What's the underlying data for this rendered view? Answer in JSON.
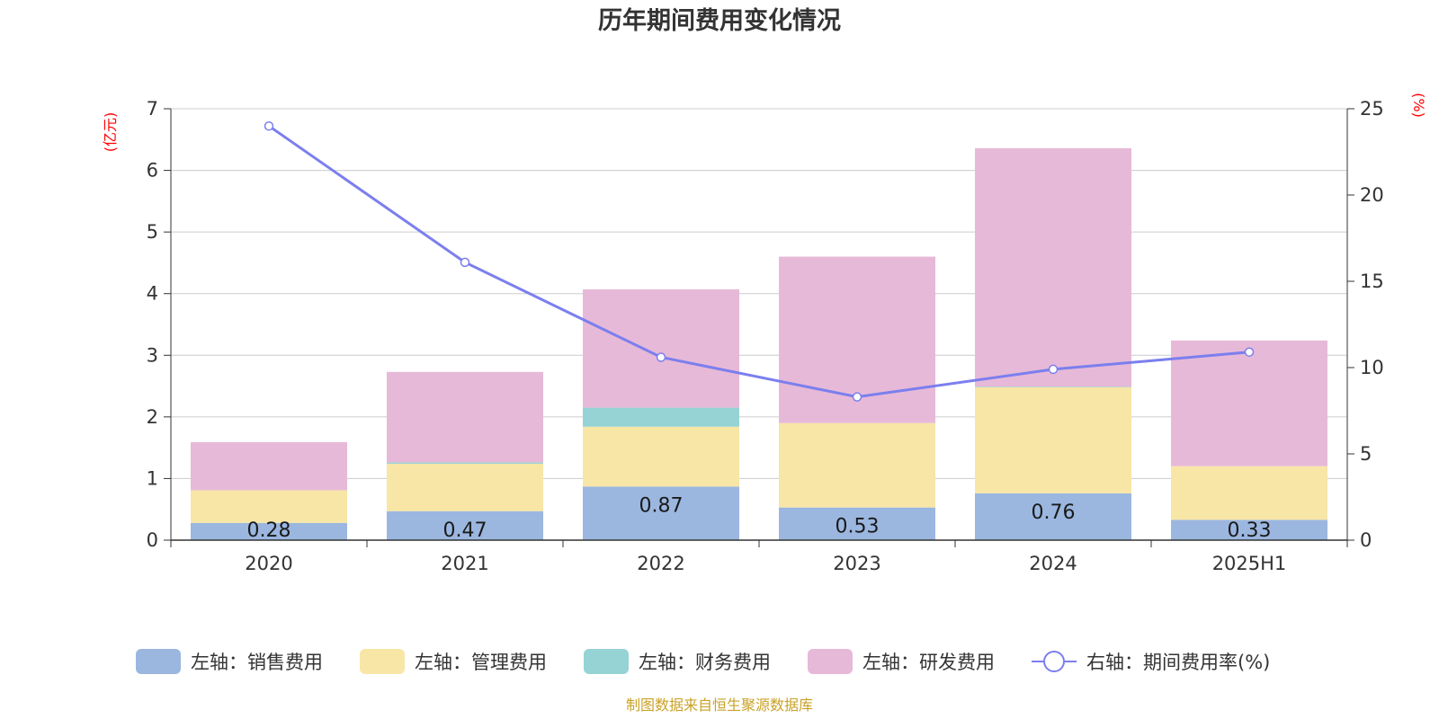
{
  "chart_data": {
    "type": "bar",
    "title": "历年期间费用变化情况",
    "categories": [
      "2020",
      "2021",
      "2022",
      "2023",
      "2024",
      "2025H1"
    ],
    "y_left": {
      "unit_label": "(亿元)",
      "ylim": [
        0,
        7
      ],
      "ticks": [
        "0",
        "1",
        "2",
        "3",
        "4",
        "5",
        "6",
        "7"
      ]
    },
    "y_right": {
      "unit_label": "(%)",
      "ylim": [
        0,
        25
      ],
      "ticks": [
        "0",
        "5",
        "10",
        "15",
        "20",
        "25"
      ]
    },
    "stacked": true,
    "series": [
      {
        "name": "左轴：销售费用",
        "axis": "left",
        "type": "bar",
        "color": "#9bb7e0",
        "values": [
          0.28,
          0.47,
          0.87,
          0.53,
          0.76,
          0.33
        ],
        "data_labels": [
          "0.28",
          "0.47",
          "0.87",
          "0.53",
          "0.76",
          "0.33"
        ]
      },
      {
        "name": "左轴：管理费用",
        "axis": "left",
        "type": "bar",
        "color": "#f7e6a6",
        "values": [
          0.53,
          0.77,
          0.97,
          1.37,
          1.72,
          0.87
        ]
      },
      {
        "name": "左轴：财务费用",
        "axis": "left",
        "type": "bar",
        "color": "#96d3d4",
        "values": [
          0.0,
          0.02,
          0.31,
          0.0,
          0.01,
          0.0
        ]
      },
      {
        "name": "左轴：研发费用",
        "axis": "left",
        "type": "bar",
        "color": "#e7b9d8",
        "values": [
          0.78,
          1.47,
          1.92,
          2.7,
          3.87,
          2.04
        ]
      },
      {
        "name": "右轴：期间费用率(%)",
        "axis": "right",
        "type": "line",
        "color": "#7b7fee",
        "values": [
          24.0,
          16.1,
          10.6,
          8.3,
          9.9,
          10.9
        ]
      }
    ],
    "grid": true,
    "legend_position": "bottom"
  },
  "source_text": "制图数据来自恒生聚源数据库"
}
